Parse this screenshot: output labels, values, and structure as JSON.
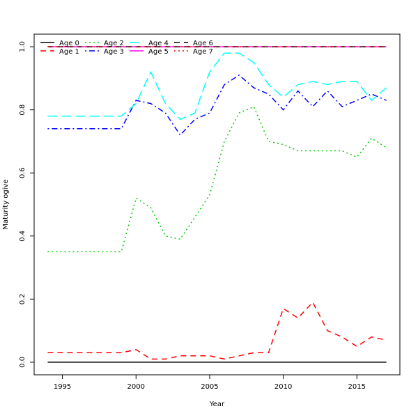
{
  "chart_data": {
    "type": "line",
    "title": "",
    "xlabel": "Year",
    "ylabel": "Maturity ogive",
    "xlim": [
      1993.08,
      2017.92
    ],
    "ylim": [
      -0.04,
      1.04
    ],
    "xticks": [
      "1995",
      "2000",
      "2005",
      "2010",
      "2015"
    ],
    "yticks": [
      "0.0",
      "0.2",
      "0.4",
      "0.6",
      "0.8",
      "1.0"
    ],
    "grid": false,
    "legend_position": "top-left",
    "x": [
      1994,
      1995,
      1996,
      1997,
      1998,
      1999,
      2000,
      2001,
      2002,
      2003,
      2004,
      2005,
      2006,
      2007,
      2008,
      2009,
      2010,
      2011,
      2012,
      2013,
      2014,
      2015,
      2016,
      2017
    ],
    "series": [
      {
        "name": "Age 0",
        "color": "#000000",
        "dash": "solid",
        "values": [
          0,
          0,
          0,
          0,
          0,
          0,
          0,
          0,
          0,
          0,
          0,
          0,
          0,
          0,
          0,
          0,
          0,
          0,
          0,
          0,
          0,
          0,
          0,
          0
        ]
      },
      {
        "name": "Age 1",
        "color": "#ff0000",
        "dash": "dashed",
        "values": [
          0.03,
          0.03,
          0.03,
          0.03,
          0.03,
          0.03,
          0.04,
          0.01,
          0.01,
          0.02,
          0.02,
          0.02,
          0.01,
          0.02,
          0.03,
          0.03,
          0.17,
          0.14,
          0.19,
          0.1,
          0.08,
          0.05,
          0.08,
          0.07
        ]
      },
      {
        "name": "Age 2",
        "color": "#00cd00",
        "dash": "dotted",
        "values": [
          0.35,
          0.35,
          0.35,
          0.35,
          0.35,
          0.35,
          0.52,
          0.49,
          0.4,
          0.39,
          0.46,
          0.53,
          0.7,
          0.79,
          0.81,
          0.7,
          0.69,
          0.67,
          0.67,
          0.67,
          0.67,
          0.65,
          0.71,
          0.68
        ]
      },
      {
        "name": "Age 3",
        "color": "#0000ff",
        "dash": "dotdash",
        "values": [
          0.74,
          0.74,
          0.74,
          0.74,
          0.74,
          0.74,
          0.83,
          0.82,
          0.79,
          0.72,
          0.77,
          0.79,
          0.88,
          0.91,
          0.87,
          0.85,
          0.8,
          0.86,
          0.81,
          0.86,
          0.81,
          0.83,
          0.85,
          0.83
        ]
      },
      {
        "name": "Age 4",
        "color": "#00ffff",
        "dash": "longdash",
        "values": [
          0.78,
          0.78,
          0.78,
          0.78,
          0.78,
          0.78,
          0.82,
          0.92,
          0.82,
          0.77,
          0.79,
          0.92,
          0.98,
          0.98,
          0.95,
          0.88,
          0.84,
          0.88,
          0.89,
          0.88,
          0.89,
          0.89,
          0.83,
          0.87
        ]
      },
      {
        "name": "Age 5",
        "color": "#ff00ff",
        "dash": "solid",
        "values": [
          1,
          1,
          1,
          1,
          1,
          1,
          1,
          1,
          1,
          1,
          1,
          1,
          1,
          1,
          1,
          1,
          1,
          1,
          1,
          1,
          1,
          1,
          1,
          1
        ]
      },
      {
        "name": "Age 6",
        "color": "#000000",
        "dash": "dashed",
        "values": [
          1,
          1,
          1,
          1,
          1,
          1,
          1,
          1,
          1,
          1,
          1,
          1,
          1,
          1,
          1,
          1,
          1,
          1,
          1,
          1,
          1,
          1,
          1,
          1
        ]
      },
      {
        "name": "Age 7",
        "color": "#ff0000",
        "dash": "dotted",
        "values": [
          1,
          1,
          1,
          1,
          1,
          1,
          1,
          1,
          1,
          1,
          1,
          1,
          1,
          1,
          1,
          1,
          1,
          1,
          1,
          1,
          1,
          1,
          1,
          1
        ]
      }
    ]
  }
}
